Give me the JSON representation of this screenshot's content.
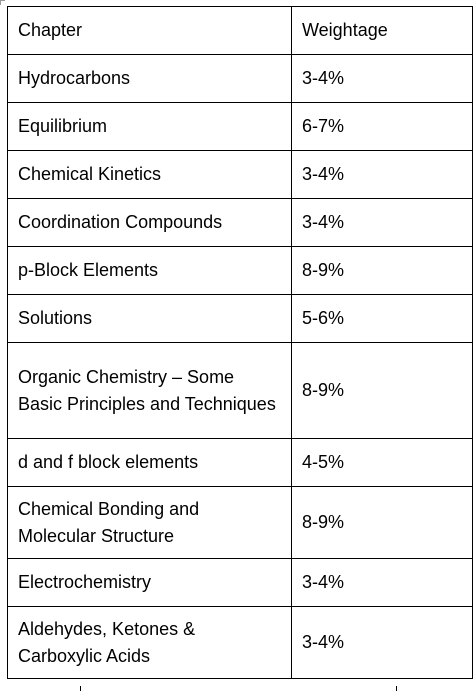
{
  "table": {
    "headers": {
      "chapter": "Chapter",
      "weightage": "Weightage"
    },
    "rows": [
      {
        "chapter": "Hydrocarbons",
        "weightage": "3-4%"
      },
      {
        "chapter": "Equilibrium",
        "weightage": "6-7%"
      },
      {
        "chapter": "Chemical Kinetics",
        "weightage": "3-4%"
      },
      {
        "chapter": "Coordination Compounds",
        "weightage": "3-4%"
      },
      {
        "chapter": "p-Block Elements",
        "weightage": "8-9%"
      },
      {
        "chapter": "Solutions",
        "weightage": "5-6%"
      },
      {
        "chapter": "Organic Chemistry – Some Basic Principles and Techniques",
        "weightage": "8-9%"
      },
      {
        "chapter": "d and f block elements",
        "weightage": "4-5%"
      },
      {
        "chapter": "Chemical Bonding and Molecular Structure",
        "weightage": "8-9%"
      },
      {
        "chapter": "Electrochemistry",
        "weightage": "3-4%"
      },
      {
        "chapter": "Aldehydes, Ketones & Carboxylic Acids",
        "weightage": "3-4%"
      }
    ]
  }
}
